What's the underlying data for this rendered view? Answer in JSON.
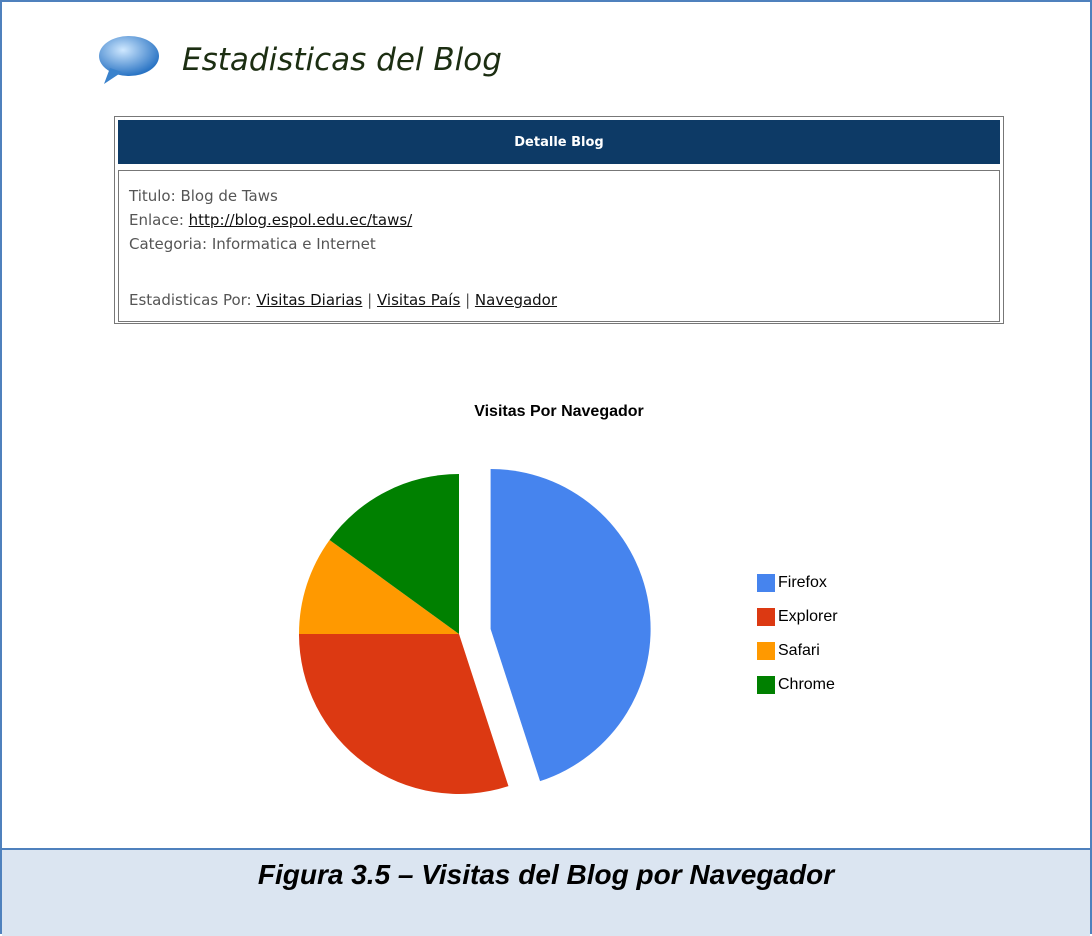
{
  "header": {
    "title": "Estadisticas del Blog"
  },
  "detail": {
    "heading": "Detalle Blog",
    "titulo_label": "Titulo:",
    "titulo": "Blog de Taws",
    "enlace_label": "Enlace:",
    "enlace": "http://blog.espol.edu.ec/taws/",
    "categoria_label": "Categoria:",
    "categoria": "Informatica e Internet",
    "stats_label": "Estadisticas Por:",
    "separator": "|",
    "links": [
      "Visitas Diarias",
      "Visitas País",
      "Navegador"
    ]
  },
  "chart_data": {
    "type": "pie",
    "title": "Visitas Por Navegador",
    "categories": [
      "Firefox",
      "Explorer",
      "Safari",
      "Chrome"
    ],
    "values": [
      45,
      30,
      10,
      15
    ],
    "colors": [
      "#4684ee",
      "#dc3912",
      "#ff9900",
      "#008000"
    ],
    "explode": "Firefox",
    "legend": "right"
  },
  "caption": "Figura 3.5 – Visitas del Blog por Navegador"
}
